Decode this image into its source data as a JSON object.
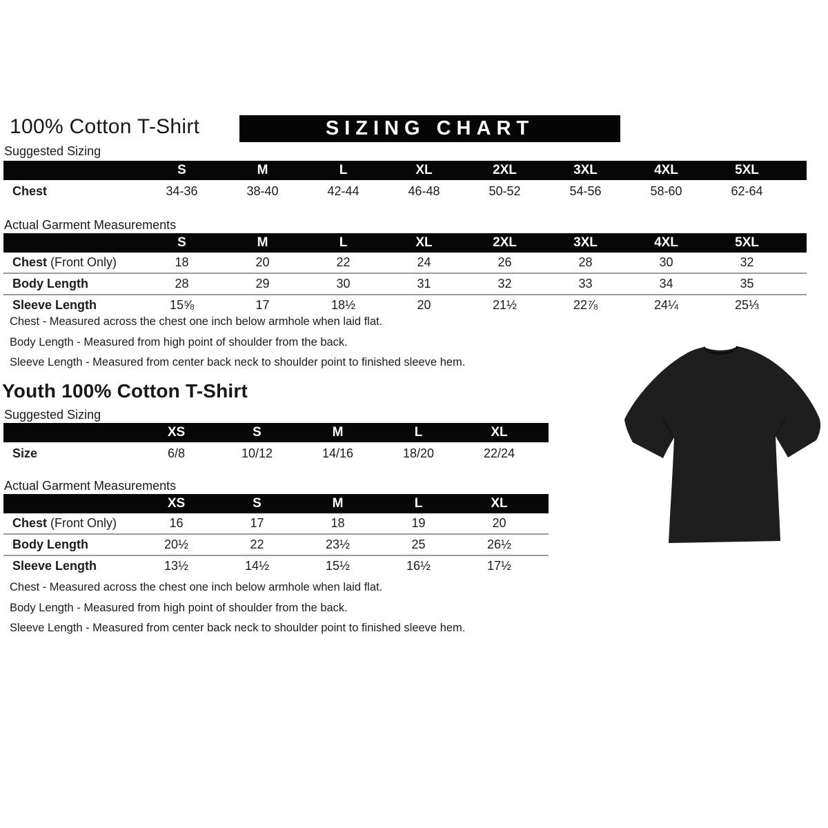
{
  "header": {
    "title": "100% Cotton T-Shirt",
    "banner": "SIZING CHART"
  },
  "adult": {
    "suggested_label": "Suggested Sizing",
    "suggested_table": {
      "sizes": [
        "S",
        "M",
        "L",
        "XL",
        "2XL",
        "3XL",
        "4XL",
        "5XL"
      ],
      "rows": [
        {
          "label": "Chest",
          "suffix": "",
          "values": [
            "34-36",
            "38-40",
            "42-44",
            "46-48",
            "50-52",
            "54-56",
            "58-60",
            "62-64"
          ]
        }
      ]
    },
    "actual_label": "Actual Garment Measurements",
    "actual_table": {
      "sizes": [
        "S",
        "M",
        "L",
        "XL",
        "2XL",
        "3XL",
        "4XL",
        "5XL"
      ],
      "rows": [
        {
          "label": "Chest",
          "suffix": " (Front Only)",
          "values": [
            "18",
            "20",
            "22",
            "24",
            "26",
            "28",
            "30",
            "32"
          ]
        },
        {
          "label": "Body Length",
          "suffix": "",
          "values": [
            "28",
            "29",
            "30",
            "31",
            "32",
            "33",
            "34",
            "35"
          ]
        },
        {
          "label": "Sleeve Length",
          "suffix": "",
          "values": [
            "15⅝",
            "17",
            "18½",
            "20",
            "21½",
            "22⅞",
            "24¼",
            "25⅓"
          ]
        }
      ]
    },
    "notes": [
      "Chest - Measured across the chest one inch below armhole when laid flat.",
      "Body Length - Measured from high point of shoulder from the back.",
      "Sleeve Length - Measured from center back neck to shoulder point to finished sleeve hem."
    ]
  },
  "youth": {
    "title": "Youth 100% Cotton T-Shirt",
    "suggested_label": "Suggested Sizing",
    "suggested_table": {
      "sizes": [
        "XS",
        "S",
        "M",
        "L",
        "XL"
      ],
      "rows": [
        {
          "label": "Size",
          "suffix": "",
          "values": [
            "6/8",
            "10/12",
            "14/16",
            "18/20",
            "22/24"
          ]
        }
      ]
    },
    "actual_label": "Actual Garment Measurements",
    "actual_table": {
      "sizes": [
        "XS",
        "S",
        "M",
        "L",
        "XL"
      ],
      "rows": [
        {
          "label": "Chest",
          "suffix": " (Front Only)",
          "values": [
            "16",
            "17",
            "18",
            "19",
            "20"
          ]
        },
        {
          "label": "Body Length",
          "suffix": "",
          "values": [
            "20½",
            "22",
            "23½",
            "25",
            "26½"
          ]
        },
        {
          "label": "Sleeve Length",
          "suffix": "",
          "values": [
            "13½",
            "14½",
            "15½",
            "16½",
            "17½"
          ]
        }
      ]
    },
    "notes": [
      "Chest - Measured across the chest one inch below armhole when laid flat.",
      "Body Length - Measured from high point of shoulder from the back.",
      "Sleeve Length - Measured from center back neck to shoulder point to finished sleeve hem."
    ]
  },
  "tshirt": {
    "label": "black-tshirt-photo",
    "color": "#1e1e1e",
    "seam_color": "#0e0e0e"
  }
}
